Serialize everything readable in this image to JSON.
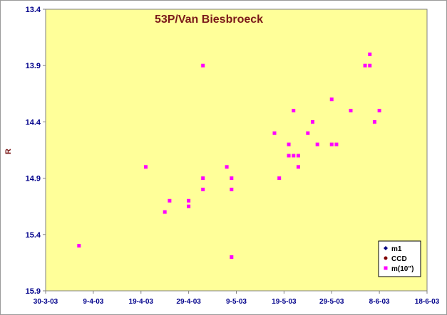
{
  "chart_data": {
    "type": "scatter",
    "title": "53P/Van Biesbroeck",
    "xlabel": "",
    "ylabel": "R",
    "y_inverted": true,
    "ylim": [
      13.4,
      15.9
    ],
    "y_ticks": [
      "13.4",
      "13.9",
      "14.4",
      "14.9",
      "15.4",
      "15.9"
    ],
    "xlim": [
      "2003-03-30",
      "2003-06-18"
    ],
    "x_ticks": [
      "30-3-03",
      "9-4-03",
      "19-4-03",
      "29-4-03",
      "9-5-03",
      "19-5-03",
      "29-5-03",
      "8-6-03",
      "18-6-03"
    ],
    "grid": false,
    "legend_position": "bottom-right",
    "colors": {
      "plot_background": "#ffff99",
      "m1": "#000080",
      "CCD": "#800000",
      "m10": "#ff00ff",
      "title": "#7b1a1a",
      "ticks": "#00008b"
    },
    "series": [
      {
        "name": "m1",
        "marker": "diamond",
        "x": [],
        "y": []
      },
      {
        "name": "CCD",
        "marker": "circle",
        "x": [],
        "y": []
      },
      {
        "name": "m(10\")",
        "marker": "square",
        "x": [
          "2003-04-06",
          "2003-04-20",
          "2003-04-24",
          "2003-04-25",
          "2003-04-29",
          "2003-04-29",
          "2003-05-02",
          "2003-05-02",
          "2003-05-02",
          "2003-05-07",
          "2003-05-08",
          "2003-05-08",
          "2003-05-08",
          "2003-05-17",
          "2003-05-18",
          "2003-05-20",
          "2003-05-20",
          "2003-05-21",
          "2003-05-21",
          "2003-05-22",
          "2003-05-22",
          "2003-05-24",
          "2003-05-25",
          "2003-05-26",
          "2003-05-29",
          "2003-05-29",
          "2003-05-30",
          "2003-06-02",
          "2003-06-05",
          "2003-06-06",
          "2003-06-06",
          "2003-06-07",
          "2003-06-08"
        ],
        "y": [
          15.5,
          14.8,
          15.2,
          15.1,
          15.1,
          15.15,
          13.9,
          14.9,
          15.0,
          14.8,
          14.9,
          15.0,
          15.6,
          14.5,
          14.9,
          14.6,
          14.7,
          14.7,
          14.3,
          14.7,
          14.8,
          14.5,
          14.4,
          14.6,
          14.6,
          14.2,
          14.6,
          14.3,
          13.9,
          13.9,
          13.8,
          14.4,
          14.3
        ]
      }
    ]
  }
}
